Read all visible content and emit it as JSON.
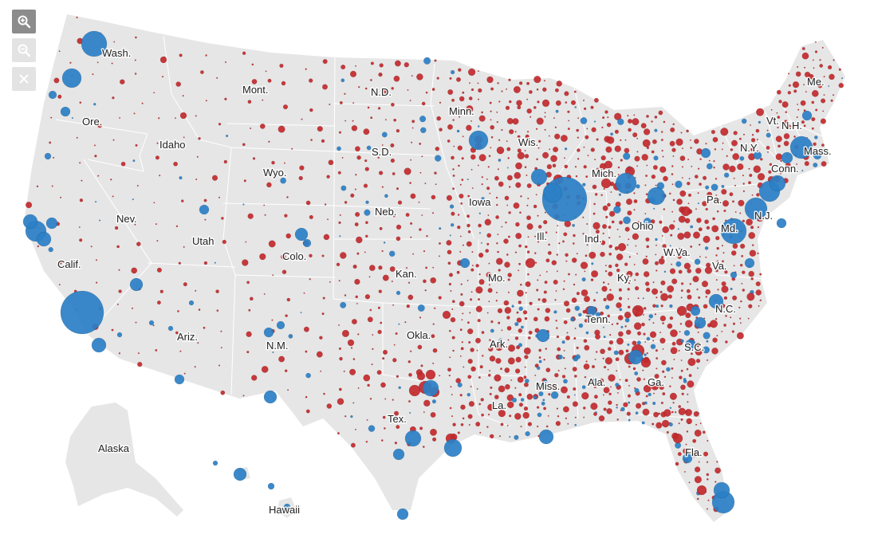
{
  "controls": {
    "zoom_in": {
      "icon": "zoom-in-icon",
      "bg": "#8c8c8c",
      "color": "#ffffff"
    },
    "zoom_out": {
      "icon": "zoom-out-icon",
      "bg": "#e3e3e3",
      "color": "#ffffff"
    },
    "reset": {
      "icon": "close-icon",
      "bg": "#e3e3e3",
      "color": "#ffffff"
    }
  },
  "colors": {
    "land": "#e6e6e6",
    "state_border": "#ffffff",
    "republican": "#c3292d",
    "democratic": "#2a7fc6",
    "label": "#222222"
  },
  "states": {
    "wash": "Wash.",
    "ore": "Ore.",
    "calif": "Calif.",
    "idaho": "Idaho",
    "nev": "Nev.",
    "mont": "Mont.",
    "wyo": "Wyo.",
    "utah": "Utah",
    "ariz": "Ariz.",
    "colo": "Colo.",
    "nm": "N.M.",
    "nd": "N.D.",
    "sd": "S.D.",
    "neb": "Neb.",
    "kan": "Kan.",
    "okla": "Okla.",
    "tex": "Tex.",
    "minn": "Minn.",
    "iowa": "Iowa",
    "mo": "Mo.",
    "ark": "Ark.",
    "la": "La.",
    "wis": "Wis.",
    "ill": "Ill.",
    "miss": "Miss.",
    "mich": "Mich.",
    "ind": "Ind.",
    "ohio": "Ohio",
    "ky": "Ky.",
    "tenn": "Tenn.",
    "ala": "Ala.",
    "ga": "Ga.",
    "fla": "Fla.",
    "sc": "S.C.",
    "nc": "N.C.",
    "va": "Va.",
    "wva": "W.Va.",
    "md": "Md.",
    "pa": "Pa.",
    "nj": "N.J.",
    "ny": "N.Y.",
    "conn": "Conn.",
    "mass": "Mass.",
    "vt": "Vt.",
    "nh": "N.H.",
    "me": "Me.",
    "alaska": "Alaska",
    "hawaii": "Hawaii"
  }
}
